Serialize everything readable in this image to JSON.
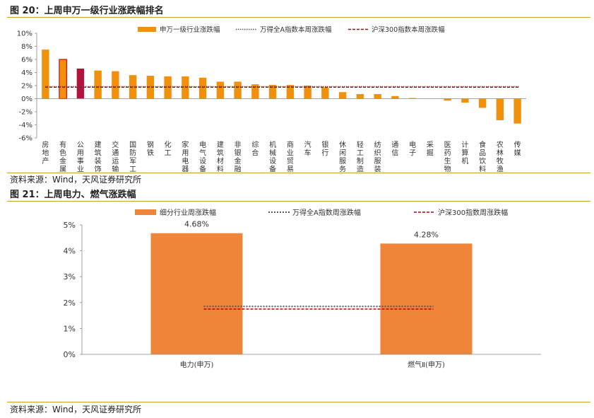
{
  "figure20": {
    "title": "图 20：上周申万一级行业涨跌幅排名",
    "source": "资料来源：Wind，天风证券研究所",
    "legend": {
      "bar": "申万一级行业涨跌幅",
      "wind": "万得全A指数本周涨跌幅",
      "hs300": "沪深300指数本周涨跌幅"
    },
    "colors": {
      "bar": "#f0900c",
      "highlight": "#b0143c",
      "outline": "#e0001a",
      "wind_line": "#555555",
      "hs300_line": "#c00000"
    }
  },
  "figure21": {
    "title": "图 21：上周电力、燃气涨跌幅",
    "source": "资料来源：Wind，天风证券研究所",
    "legend": {
      "bar": "细分行业周涨跌幅",
      "wind": "万得全A指数周涨跌幅",
      "hs300": "沪深300指数周涨跌幅"
    },
    "colors": {
      "bar": "#ef8539",
      "wind_line": "#555555",
      "hs300_line": "#c00000"
    }
  },
  "chart_data": [
    {
      "type": "bar",
      "title": "上周申万一级行业涨跌幅排名",
      "categories": [
        "房地产",
        "有色金属",
        "公用事业",
        "建筑装饰",
        "交通运输",
        "国防军工",
        "钢铁",
        "化工",
        "家用电器",
        "电气设备",
        "建筑材料",
        "非银金融",
        "综合",
        "机械设备",
        "商业贸易",
        "汽车",
        "银行",
        "休闲服务",
        "轻工制造",
        "纺织服装",
        "通信",
        "电子",
        "采掘",
        "医药生物",
        "计算机",
        "食品饮料",
        "农林牧渔",
        "传媒"
      ],
      "series": [
        {
          "name": "申万一级行业涨跌幅",
          "values": [
            7.5,
            6.0,
            4.6,
            4.3,
            4.2,
            3.6,
            3.5,
            3.4,
            3.4,
            3.2,
            2.6,
            2.6,
            2.2,
            2.1,
            2.1,
            2.0,
            1.7,
            1.0,
            0.7,
            0.7,
            0.4,
            0.1,
            0.0,
            -0.3,
            -0.6,
            -1.4,
            -3.3,
            -3.8
          ]
        },
        {
          "name": "万得全A指数本周涨跌幅",
          "value": 1.85
        },
        {
          "name": "沪深300指数本周涨跌幅",
          "value": 1.75
        }
      ],
      "highlight": {
        "outlined": "有色金属",
        "dark": "公用事业"
      },
      "ylim": [
        -6,
        10
      ],
      "yticks": [
        "10%",
        "8%",
        "6%",
        "4%",
        "2%",
        "0%",
        "-2%",
        "-4%",
        "-6%"
      ],
      "legend_position": "top"
    },
    {
      "type": "bar",
      "title": "上周电力、燃气涨跌幅",
      "categories": [
        "电力(申万)",
        "燃气Ⅱ(申万)"
      ],
      "series": [
        {
          "name": "细分行业周涨跌幅",
          "values": [
            4.68,
            4.28
          ],
          "labels": [
            "4.68%",
            "4.28%"
          ]
        },
        {
          "name": "万得全A指数周涨跌幅",
          "value": 1.85
        },
        {
          "name": "沪深300指数周涨跌幅",
          "value": 1.75
        }
      ],
      "ylim": [
        0,
        5
      ],
      "yticks": [
        "5%",
        "4%",
        "3%",
        "2%",
        "1%",
        "0%"
      ],
      "legend_position": "top"
    }
  ]
}
